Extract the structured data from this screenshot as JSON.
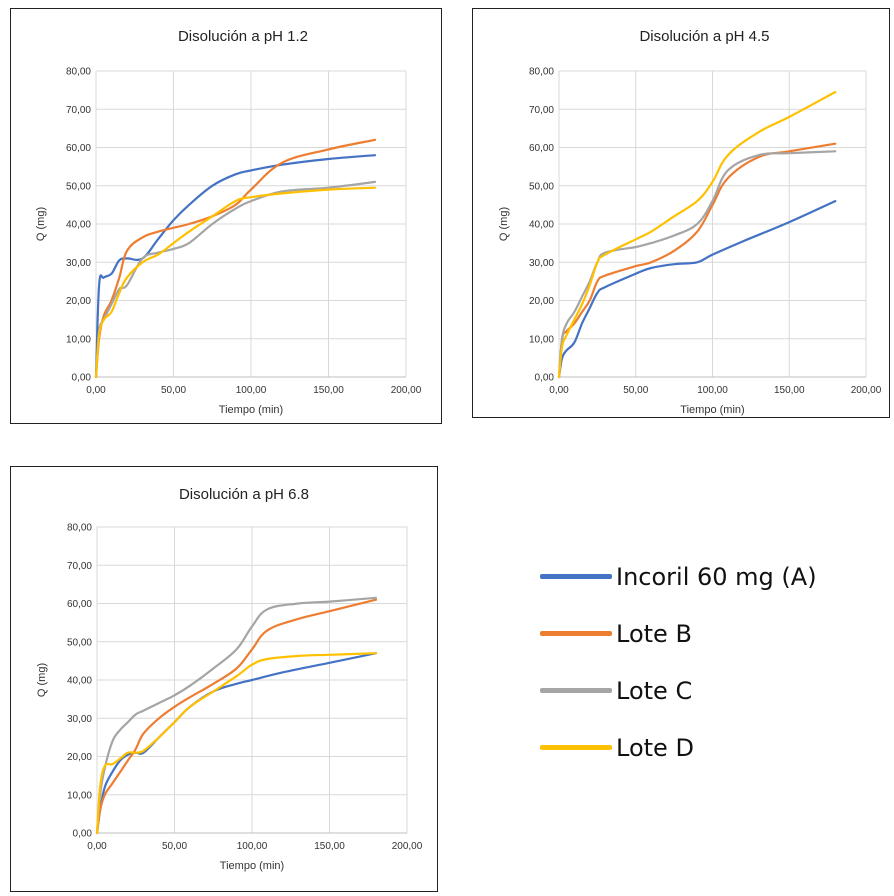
{
  "chart_data": [
    {
      "type": "line",
      "title": "Disolución a pH 1.2",
      "xlabel": "Tiempo (min)",
      "ylabel": "Q (mg)",
      "xlim": [
        0,
        200
      ],
      "ylim": [
        0,
        80
      ],
      "xticks": [
        "0,00",
        "50,00",
        "100,00",
        "150,00",
        "200,00"
      ],
      "yticks": [
        "0,00",
        "10,00",
        "20,00",
        "30,00",
        "40,00",
        "50,00",
        "60,00",
        "70,00",
        "80,00"
      ],
      "grid": true,
      "series": [
        {
          "name": "Incoril 60 mg (A)",
          "x": [
            0,
            2,
            5,
            10,
            15,
            20,
            30,
            40,
            50,
            60,
            75,
            90,
            100,
            120,
            150,
            180
          ],
          "y": [
            0,
            24,
            26,
            27,
            30.5,
            31,
            31,
            36,
            41,
            45,
            50,
            53,
            54,
            55.5,
            57,
            58
          ]
        },
        {
          "name": "Lote B",
          "x": [
            0,
            2,
            5,
            10,
            15,
            20,
            30,
            40,
            50,
            60,
            75,
            90,
            100,
            120,
            150,
            180
          ],
          "y": [
            0,
            10,
            16,
            20,
            26,
            33,
            36.5,
            38,
            39,
            40,
            42,
            45,
            49,
            56,
            59.5,
            62
          ]
        },
        {
          "name": "Lote C",
          "x": [
            0,
            2,
            5,
            10,
            15,
            20,
            30,
            40,
            50,
            60,
            75,
            90,
            100,
            120,
            150,
            180
          ],
          "y": [
            0,
            12,
            15,
            19,
            23,
            24,
            31,
            32.5,
            33.5,
            35,
            40,
            44,
            46,
            48.5,
            49.5,
            51
          ]
        },
        {
          "name": "Lote D",
          "x": [
            0,
            2,
            5,
            10,
            15,
            20,
            30,
            40,
            50,
            60,
            75,
            90,
            100,
            120,
            150,
            180
          ],
          "y": [
            0,
            11,
            15,
            17,
            22,
            26,
            30,
            32,
            35,
            38,
            42,
            46,
            47,
            48,
            49,
            49.5
          ]
        }
      ]
    },
    {
      "type": "line",
      "title": "Disolución a pH 4.5",
      "xlabel": "Tiempo (min)",
      "ylabel": "Q (mg)",
      "xlim": [
        0,
        200
      ],
      "ylim": [
        0,
        80
      ],
      "xticks": [
        "0,00",
        "50,00",
        "100,00",
        "150,00",
        "200,00"
      ],
      "yticks": [
        "0,00",
        "10,00",
        "20,00",
        "30,00",
        "40,00",
        "50,00",
        "60,00",
        "70,00",
        "80,00"
      ],
      "grid": true,
      "series": [
        {
          "name": "Incoril 60 mg (A)",
          "x": [
            0,
            2,
            5,
            10,
            15,
            20,
            25,
            30,
            50,
            60,
            75,
            90,
            100,
            120,
            150,
            180
          ],
          "y": [
            0,
            5,
            7,
            9,
            14,
            18,
            22,
            23.5,
            27,
            28.5,
            29.5,
            30,
            32,
            35.5,
            40.5,
            46
          ]
        },
        {
          "name": "Lote B",
          "x": [
            0,
            2,
            5,
            10,
            15,
            20,
            25,
            30,
            50,
            60,
            75,
            90,
            100,
            110,
            130,
            150,
            180
          ],
          "y": [
            0,
            10,
            12,
            14,
            17,
            20,
            25,
            26.5,
            29,
            30,
            33,
            38,
            45,
            52,
            57.5,
            59,
            61
          ]
        },
        {
          "name": "Lote C",
          "x": [
            0,
            2,
            5,
            10,
            15,
            20,
            25,
            30,
            50,
            60,
            75,
            90,
            100,
            110,
            130,
            150,
            180
          ],
          "y": [
            0,
            10,
            14,
            17,
            21,
            25,
            30,
            32.5,
            34,
            35,
            37,
            40,
            46,
            54,
            58,
            58.5,
            59
          ]
        },
        {
          "name": "Lote D",
          "x": [
            0,
            2,
            5,
            10,
            15,
            20,
            25,
            30,
            50,
            60,
            75,
            90,
            100,
            110,
            130,
            150,
            180
          ],
          "y": [
            0,
            8,
            11,
            15,
            19,
            24,
            30,
            32,
            36,
            38,
            42,
            46,
            51,
            58,
            64,
            68,
            74.5
          ]
        }
      ]
    },
    {
      "type": "line",
      "title": "Disolución a pH 6.8",
      "xlabel": "Tiempo (min)",
      "ylabel": "Q (mg)",
      "xlim": [
        0,
        200
      ],
      "ylim": [
        0,
        80
      ],
      "xticks": [
        "0,00",
        "50,00",
        "100,00",
        "150,00",
        "200,00"
      ],
      "yticks": [
        "0,00",
        "10,00",
        "20,00",
        "30,00",
        "40,00",
        "50,00",
        "60,00",
        "70,00",
        "80,00"
      ],
      "grid": true,
      "series": [
        {
          "name": "Incoril 60 mg (A)",
          "x": [
            0,
            2,
            5,
            10,
            15,
            20,
            25,
            30,
            40,
            50,
            60,
            75,
            90,
            100,
            120,
            150,
            180
          ],
          "y": [
            0,
            6,
            12,
            16,
            19,
            20.5,
            21,
            21,
            25,
            29,
            33,
            37,
            39,
            40,
            42,
            44.5,
            47
          ]
        },
        {
          "name": "Lote B",
          "x": [
            0,
            2,
            5,
            10,
            15,
            20,
            25,
            30,
            40,
            50,
            60,
            75,
            90,
            100,
            110,
            130,
            150,
            180
          ],
          "y": [
            0,
            6,
            10,
            13,
            16,
            19,
            22,
            26,
            30,
            33,
            35.5,
            39,
            43,
            48,
            53,
            56,
            58,
            61
          ]
        },
        {
          "name": "Lote C",
          "x": [
            0,
            2,
            5,
            10,
            15,
            20,
            25,
            30,
            40,
            50,
            60,
            75,
            90,
            100,
            110,
            130,
            150,
            180
          ],
          "y": [
            0,
            10,
            17,
            24,
            27,
            29,
            31,
            32,
            34,
            36,
            38.5,
            43,
            48,
            54,
            58.5,
            60,
            60.5,
            61.5
          ]
        },
        {
          "name": "Lote D",
          "x": [
            0,
            2,
            5,
            10,
            15,
            20,
            25,
            30,
            40,
            50,
            60,
            75,
            90,
            100,
            110,
            130,
            150,
            180
          ],
          "y": [
            0,
            12,
            17.5,
            18,
            19.5,
            21,
            21,
            21.5,
            25,
            29,
            33,
            37,
            41,
            44,
            45.5,
            46.3,
            46.6,
            47
          ]
        }
      ]
    }
  ],
  "colors": {
    "Incoril 60 mg (A)": "#4472C4",
    "Lote B": "#ED7D31",
    "Lote C": "#A5A5A5",
    "Lote D": "#FFC000"
  },
  "legend": {
    "placement": "bottom-right",
    "items": [
      {
        "label": "Incoril 60 mg (A)",
        "color": "#4472C4"
      },
      {
        "label": "Lote B",
        "color": "#ED7D31"
      },
      {
        "label": "Lote C",
        "color": "#A5A5A5"
      },
      {
        "label": "Lote D",
        "color": "#FFC000"
      }
    ]
  }
}
